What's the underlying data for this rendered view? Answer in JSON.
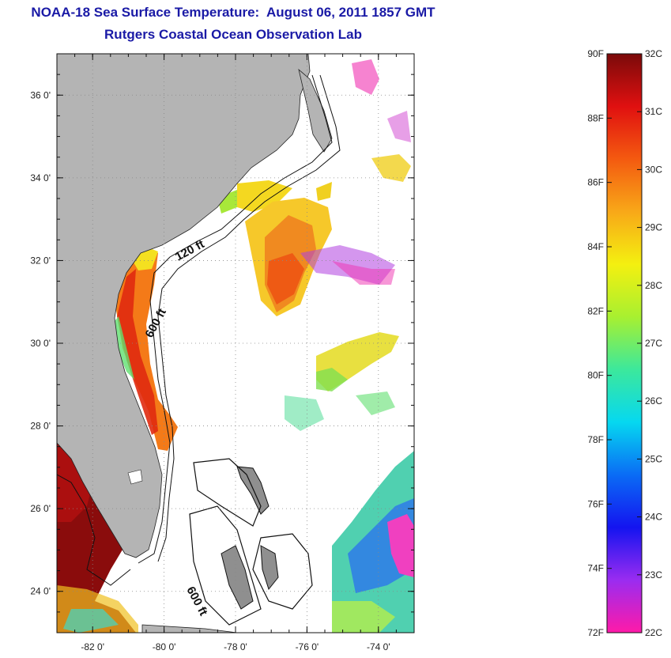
{
  "header": {
    "title": "NOAA-18 Sea Surface Temperature:  August 06, 2011 1857 GMT",
    "subtitle": "Rutgers Coastal Ocean Observation Lab"
  },
  "map": {
    "lon_range": [
      -83,
      -73
    ],
    "lat_range": [
      23,
      37
    ],
    "lon_ticks": [
      {
        "value": -82,
        "label": "-82 0'"
      },
      {
        "value": -80,
        "label": "-80 0'"
      },
      {
        "value": -78,
        "label": "-78 0'"
      },
      {
        "value": -76,
        "label": "-76 0'"
      },
      {
        "value": -74,
        "label": "-74 0'"
      }
    ],
    "lat_ticks": [
      {
        "value": 24,
        "label": "24 0'"
      },
      {
        "value": 26,
        "label": "26 0'"
      },
      {
        "value": 28,
        "label": "28 0'"
      },
      {
        "value": 30,
        "label": "30 0'"
      },
      {
        "value": 32,
        "label": "32 0'"
      },
      {
        "value": 34,
        "label": "34 0'"
      },
      {
        "value": 36,
        "label": "36 0'"
      }
    ],
    "contour_labels": [
      "120 ft",
      "600 ft",
      "600 ft"
    ],
    "land_color": "#b4b4b4",
    "grid": true
  },
  "colorbar": {
    "fahrenheit_labels": [
      "90F",
      "88F",
      "86F",
      "84F",
      "82F",
      "80F",
      "78F",
      "76F",
      "74F",
      "72F"
    ],
    "celsius_labels": [
      "32C",
      "31C",
      "30C",
      "29C",
      "28C",
      "27C",
      "26C",
      "25C",
      "24C",
      "23C",
      "22C"
    ],
    "range_f": [
      72,
      90
    ],
    "range_c": [
      22,
      32
    ],
    "colors": [
      "#ff1aa8",
      "#9a2cf0",
      "#1414f0",
      "#0a6cf5",
      "#06d8f0",
      "#3ce89c",
      "#a8f030",
      "#f4f010",
      "#f8a818",
      "#f45a10",
      "#e01010",
      "#7a0a0a"
    ]
  }
}
